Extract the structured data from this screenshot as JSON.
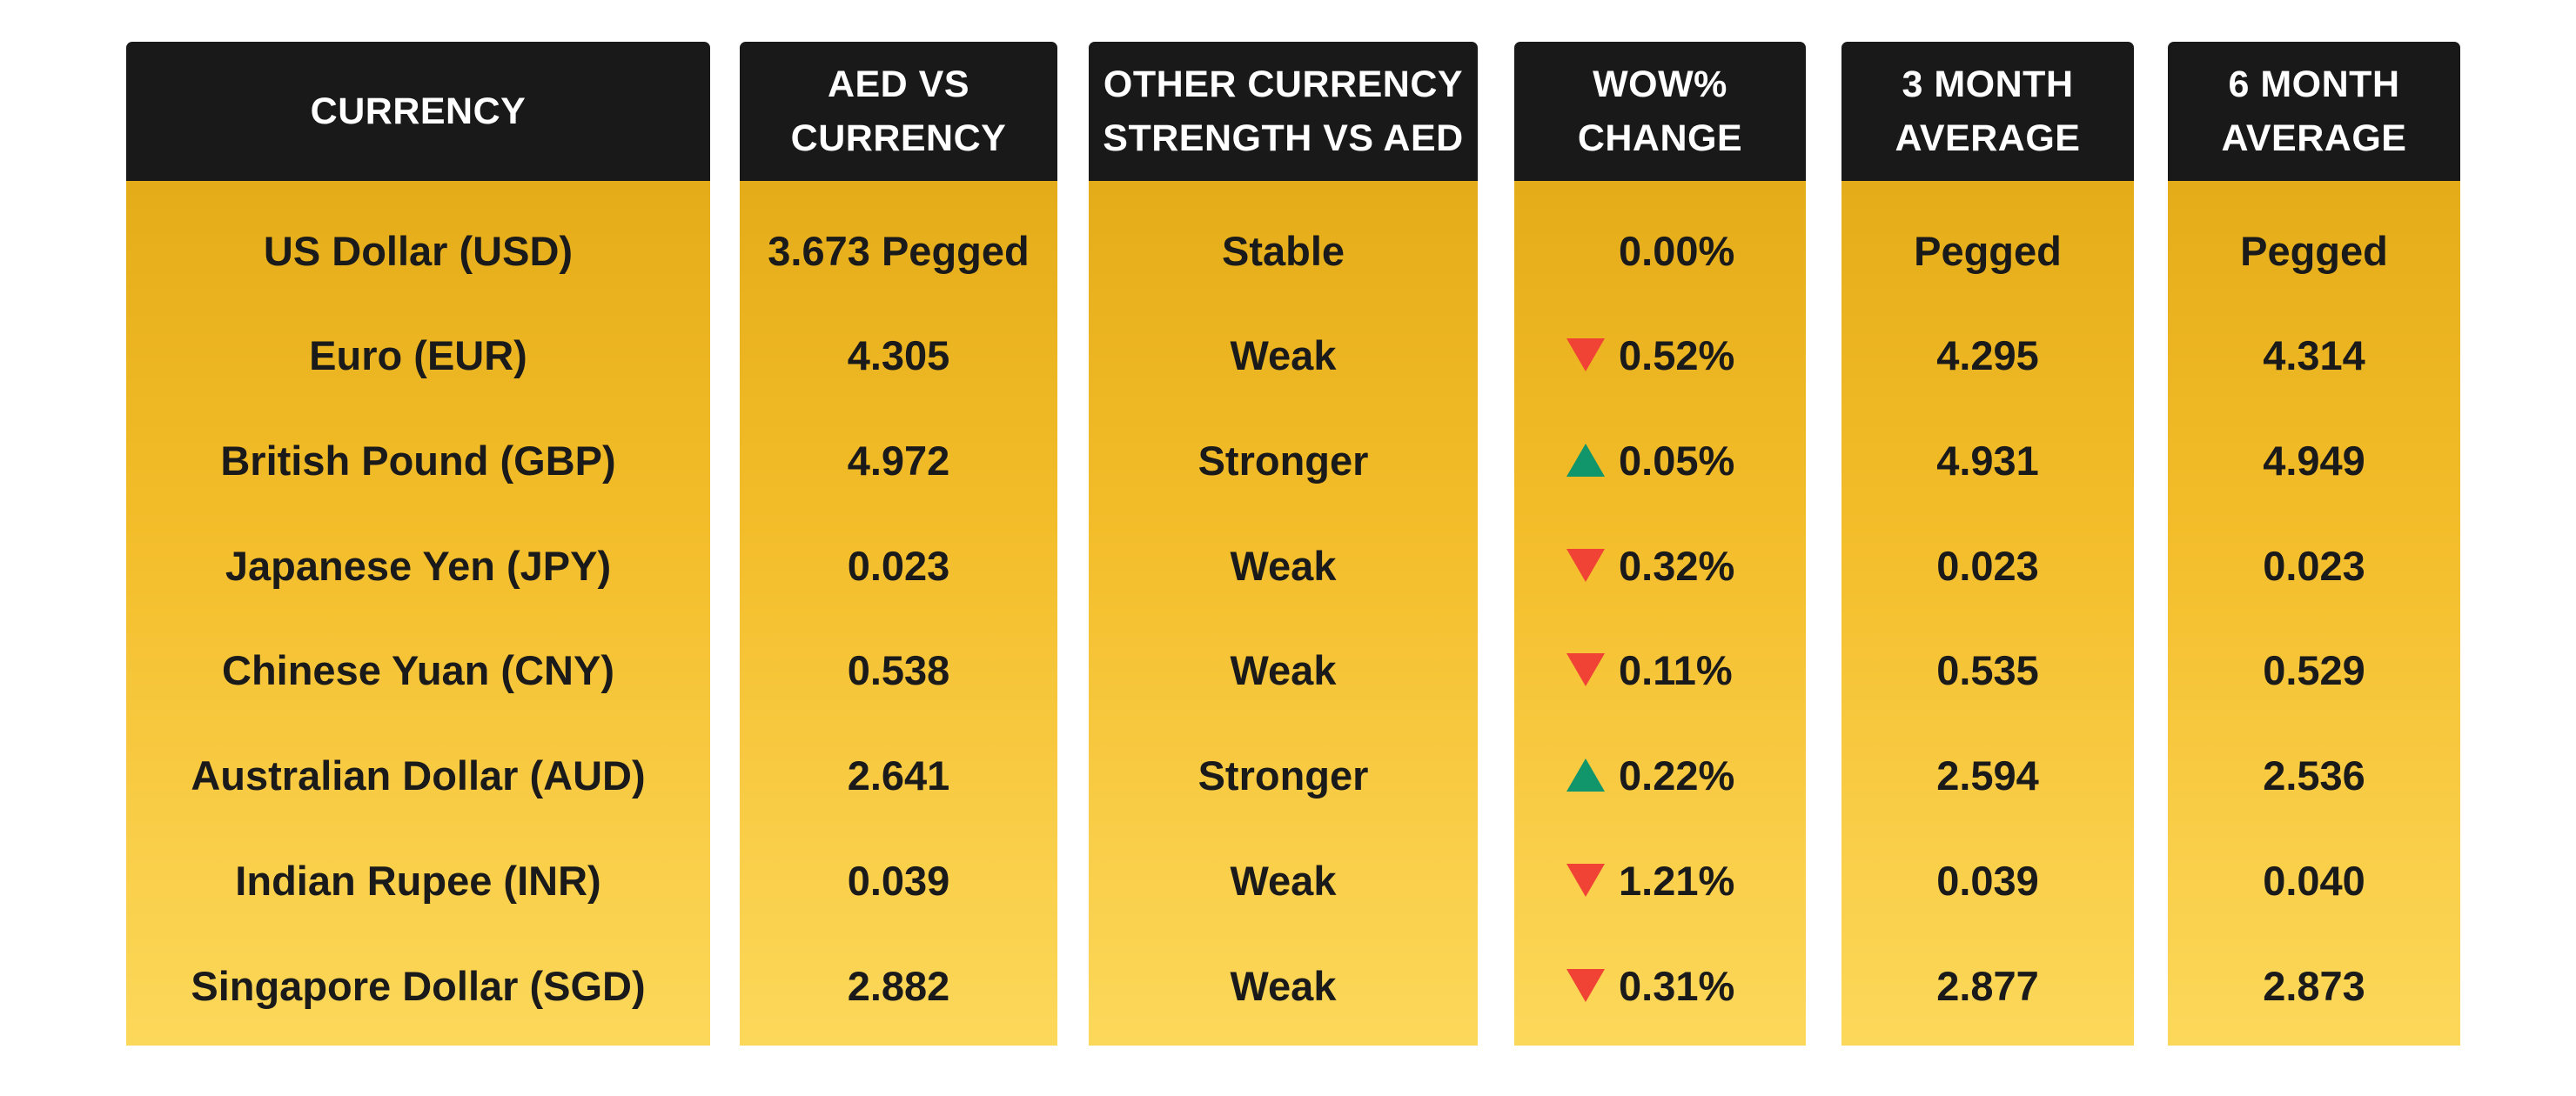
{
  "columns": [
    {
      "key": "currency",
      "lines": [
        "CURRENCY"
      ]
    },
    {
      "key": "aed_vs",
      "lines": [
        "AED VS",
        "CURRENCY"
      ]
    },
    {
      "key": "strength",
      "lines": [
        "OTHER CURRENCY",
        "STRENGTH VS AED"
      ]
    },
    {
      "key": "wow",
      "lines": [
        "WOW%",
        "CHANGE"
      ]
    },
    {
      "key": "avg3",
      "lines": [
        "3 MONTH",
        "AVERAGE"
      ]
    },
    {
      "key": "avg6",
      "lines": [
        "6 MONTH",
        "AVERAGE"
      ]
    }
  ],
  "rows": [
    {
      "currency": "US Dollar (USD)",
      "aed_vs": "3.673 Pegged",
      "strength": "Stable",
      "wow_dir": "none",
      "wow": "0.00%",
      "avg3": "Pegged",
      "avg6": "Pegged"
    },
    {
      "currency": "Euro (EUR)",
      "aed_vs": "4.305",
      "strength": "Weak",
      "wow_dir": "down",
      "wow": "0.52%",
      "avg3": "4.295",
      "avg6": "4.314"
    },
    {
      "currency": "British Pound (GBP)",
      "aed_vs": "4.972",
      "strength": "Stronger",
      "wow_dir": "up",
      "wow": "0.05%",
      "avg3": "4.931",
      "avg6": "4.949"
    },
    {
      "currency": "Japanese Yen (JPY)",
      "aed_vs": "0.023",
      "strength": "Weak",
      "wow_dir": "down",
      "wow": "0.32%",
      "avg3": "0.023",
      "avg6": "0.023"
    },
    {
      "currency": "Chinese Yuan (CNY)",
      "aed_vs": "0.538",
      "strength": "Weak",
      "wow_dir": "down",
      "wow": "0.11%",
      "avg3": "0.535",
      "avg6": "0.529"
    },
    {
      "currency": "Australian Dollar (AUD)",
      "aed_vs": "2.641",
      "strength": "Stronger",
      "wow_dir": "up",
      "wow": "0.22%",
      "avg3": "2.594",
      "avg6": "2.536"
    },
    {
      "currency": "Indian Rupee (INR)",
      "aed_vs": "0.039",
      "strength": "Weak",
      "wow_dir": "down",
      "wow": "1.21%",
      "avg3": "0.039",
      "avg6": "0.040"
    },
    {
      "currency": "Singapore Dollar (SGD)",
      "aed_vs": "2.882",
      "strength": "Weak",
      "wow_dir": "down",
      "wow": "0.31%",
      "avg3": "2.877",
      "avg6": "2.873"
    }
  ],
  "colors": {
    "header_bg": "#191919",
    "header_text": "#ffffff",
    "body_gold_top": "#e4ac18",
    "body_gold_bottom": "#fcd85a",
    "text": "#1a1a1a",
    "down_arrow": "#f04336",
    "up_arrow": "#11956a"
  },
  "icons": {
    "down": "down-triangle-icon",
    "up": "up-triangle-icon"
  }
}
